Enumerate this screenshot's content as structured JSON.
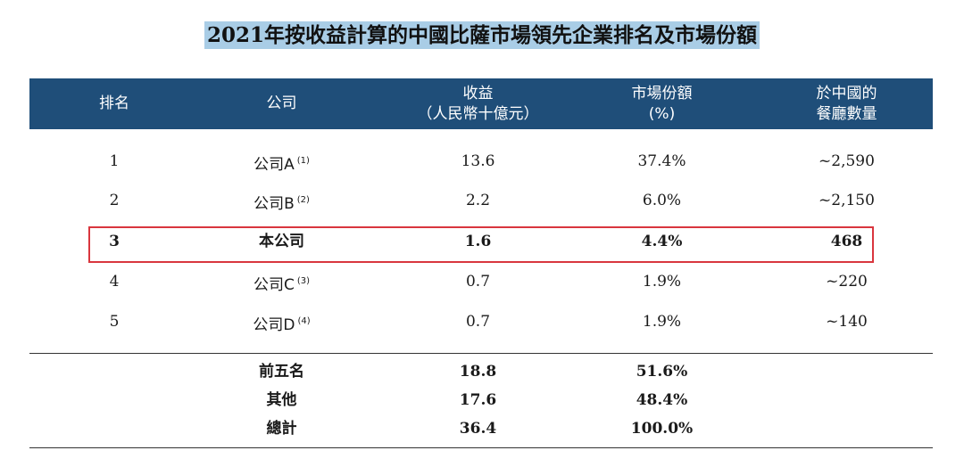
{
  "title": "2021年按收益計算的中國比薩市場領先企業排名及市場份額",
  "headers": {
    "rank": "排名",
    "company": "公司",
    "revenue_line1": "收益",
    "revenue_line2": "（人民幣十億元）",
    "share_line1": "市場份額",
    "share_line2": "(%)",
    "stores_line1": "於中國的",
    "stores_line2": "餐廳數量"
  },
  "rows": [
    {
      "rank": "1",
      "company": "公司A",
      "note": "(1)",
      "revenue": "13.6",
      "share": "37.4%",
      "stores": "~2,590"
    },
    {
      "rank": "2",
      "company": "公司B",
      "note": "(2)",
      "revenue": "2.2",
      "share": "6.0%",
      "stores": "~2,150"
    },
    {
      "rank": "3",
      "company": "本公司",
      "note": "",
      "revenue": "1.6",
      "share": "4.4%",
      "stores": "468"
    },
    {
      "rank": "4",
      "company": "公司C",
      "note": "(3)",
      "revenue": "0.7",
      "share": "1.9%",
      "stores": "~220"
    },
    {
      "rank": "5",
      "company": "公司D",
      "note": "(4)",
      "revenue": "0.7",
      "share": "1.9%",
      "stores": "~140"
    }
  ],
  "totals": [
    {
      "label": "前五名",
      "revenue": "18.8",
      "share": "51.6%"
    },
    {
      "label": "其他",
      "revenue": "17.6",
      "share": "48.4%"
    },
    {
      "label": "總計",
      "revenue": "36.4",
      "share": "100.0%"
    }
  ],
  "colors": {
    "header_bg": "#1f4e79",
    "title_highlight": "#a9cde6",
    "highlight_border": "#d9363e"
  }
}
